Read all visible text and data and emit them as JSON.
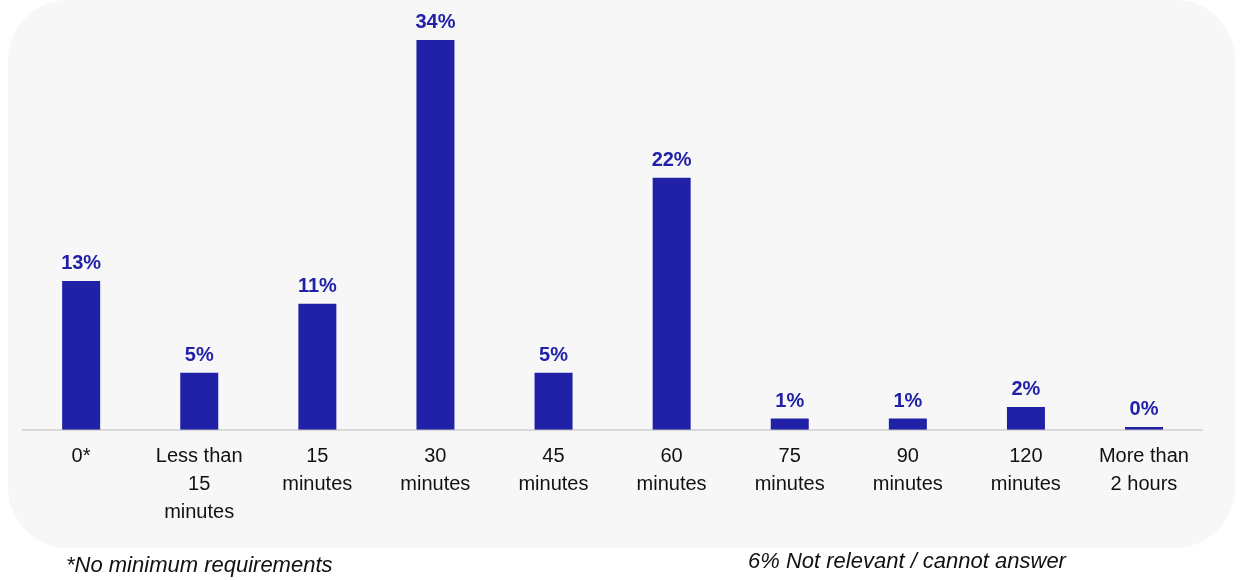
{
  "chart_data": {
    "type": "bar",
    "categories": [
      "0*",
      "Less than 15 minutes",
      "15 minutes",
      "30 minutes",
      "45 minutes",
      "60 minutes",
      "75 minutes",
      "90 minutes",
      "120 minutes",
      "More than 2 hours"
    ],
    "values": [
      13,
      5,
      11,
      34,
      5,
      22,
      1,
      1,
      2,
      0
    ],
    "value_labels": [
      "13%",
      "5%",
      "11%",
      "34%",
      "5%",
      "22%",
      "1%",
      "1%",
      "2%",
      "0%"
    ],
    "color": "#2121a8",
    "grid": false,
    "legend": false,
    "annotations": [
      "*No minimum requirements",
      "6% Not relevant / cannot answer"
    ]
  }
}
